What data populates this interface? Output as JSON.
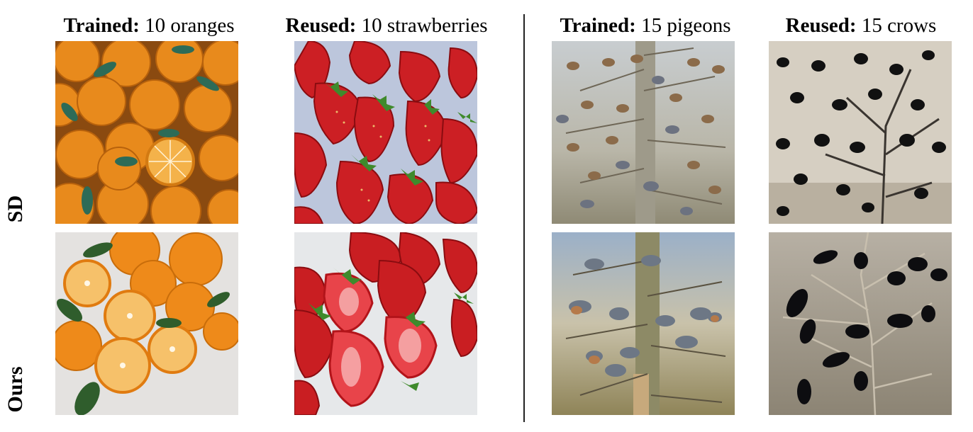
{
  "columns": [
    {
      "bold": "Trained:",
      "text": " 10 oranges"
    },
    {
      "bold": "Reused:",
      "text": " 10 strawberries"
    },
    {
      "bold": "Trained:",
      "text": " 15 pigeons"
    },
    {
      "bold": "Reused:",
      "text": " 15 crows"
    }
  ],
  "rows": [
    {
      "label": "SD"
    },
    {
      "label": "Ours"
    }
  ]
}
